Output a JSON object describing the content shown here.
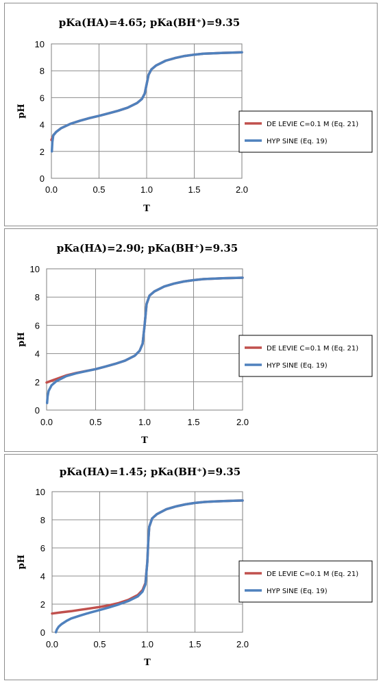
{
  "chart_data": [
    {
      "type": "line",
      "title": "pKa(HA)=4.65; pKa(BH⁺)=9.35",
      "xlabel": "T",
      "ylabel": "pH",
      "xlim": [
        0,
        2.0
      ],
      "ylim": [
        0,
        10
      ],
      "xticks": [
        "0.0",
        "0.5",
        "1.0",
        "1.5",
        "2.0"
      ],
      "yticks": [
        "0",
        "2",
        "4",
        "6",
        "8",
        "10"
      ],
      "grid": true,
      "legend": "right",
      "series": [
        {
          "name": "DE LEVIE C=0.1 M (Eq. 21)",
          "color": "#c0504d",
          "x": [
            0,
            0.02,
            0.05,
            0.1,
            0.2,
            0.3,
            0.4,
            0.5,
            0.6,
            0.7,
            0.8,
            0.9,
            0.95,
            0.98,
            1.0,
            1.02,
            1.05,
            1.1,
            1.2,
            1.3,
            1.4,
            1.5,
            1.6,
            1.7,
            1.8,
            1.9,
            2.0
          ],
          "y": [
            2.85,
            3.2,
            3.45,
            3.72,
            4.05,
            4.28,
            4.48,
            4.65,
            4.83,
            5.02,
            5.25,
            5.6,
            5.9,
            6.3,
            7.0,
            7.7,
            8.1,
            8.4,
            8.75,
            8.95,
            9.1,
            9.2,
            9.27,
            9.3,
            9.33,
            9.35,
            9.37
          ]
        },
        {
          "name": "HYP SINE (Eq. 19)",
          "color": "#4f81bd",
          "x": [
            0.005,
            0.01,
            0.02,
            0.05,
            0.1,
            0.2,
            0.3,
            0.4,
            0.5,
            0.6,
            0.7,
            0.8,
            0.9,
            0.95,
            0.98,
            1.0,
            1.02,
            1.05,
            1.1,
            1.2,
            1.3,
            1.4,
            1.5,
            1.6,
            1.7,
            1.8,
            1.9,
            2.0
          ],
          "y": [
            2.0,
            2.7,
            3.2,
            3.45,
            3.72,
            4.05,
            4.28,
            4.48,
            4.65,
            4.83,
            5.02,
            5.25,
            5.6,
            5.9,
            6.3,
            7.0,
            7.7,
            8.1,
            8.4,
            8.75,
            8.95,
            9.1,
            9.2,
            9.27,
            9.3,
            9.33,
            9.35,
            9.37
          ]
        }
      ]
    },
    {
      "type": "line",
      "title": "pKa(HA)=2.90; pKa(BH⁺)=9.35",
      "xlabel": "T",
      "ylabel": "pH",
      "xlim": [
        0,
        2.0
      ],
      "ylim": [
        0,
        10
      ],
      "xticks": [
        "0.0",
        "0.5",
        "1.0",
        "1.5",
        "2.0"
      ],
      "yticks": [
        "0",
        "2",
        "4",
        "6",
        "8",
        "10"
      ],
      "grid": true,
      "legend": "right",
      "series": [
        {
          "name": "DE LEVIE C=0.1 M (Eq. 21)",
          "color": "#c0504d",
          "x": [
            0,
            0.05,
            0.1,
            0.2,
            0.3,
            0.4,
            0.5,
            0.6,
            0.7,
            0.8,
            0.9,
            0.95,
            0.98,
            1.0,
            1.02,
            1.05,
            1.1,
            1.2,
            1.3,
            1.4,
            1.5,
            1.6,
            1.7,
            1.8,
            1.9,
            2.0
          ],
          "y": [
            1.95,
            2.08,
            2.2,
            2.45,
            2.62,
            2.76,
            2.9,
            3.08,
            3.27,
            3.5,
            3.85,
            4.2,
            4.7,
            6.0,
            7.5,
            8.1,
            8.4,
            8.75,
            8.95,
            9.1,
            9.2,
            9.27,
            9.3,
            9.33,
            9.35,
            9.37
          ]
        },
        {
          "name": "HYP SINE (Eq. 19)",
          "color": "#4f81bd",
          "x": [
            0.005,
            0.01,
            0.02,
            0.05,
            0.1,
            0.2,
            0.3,
            0.4,
            0.5,
            0.6,
            0.7,
            0.8,
            0.9,
            0.95,
            0.98,
            1.0,
            1.02,
            1.05,
            1.1,
            1.2,
            1.3,
            1.4,
            1.5,
            1.6,
            1.7,
            1.8,
            1.9,
            2.0
          ],
          "y": [
            0.5,
            0.95,
            1.35,
            1.75,
            2.05,
            2.4,
            2.6,
            2.75,
            2.9,
            3.08,
            3.27,
            3.5,
            3.85,
            4.2,
            4.7,
            6.0,
            7.5,
            8.1,
            8.4,
            8.75,
            8.95,
            9.1,
            9.2,
            9.27,
            9.3,
            9.33,
            9.35,
            9.37
          ]
        }
      ]
    },
    {
      "type": "line",
      "title": "pKa(HA)=1.45; pKa(BH⁺)=9.35",
      "xlabel": "T",
      "ylabel": "pH",
      "xlim": [
        0,
        2.0
      ],
      "ylim": [
        0,
        10
      ],
      "xticks": [
        "0.0",
        "0.5",
        "1.0",
        "1.5",
        "2.0"
      ],
      "yticks": [
        "0",
        "2",
        "4",
        "6",
        "8",
        "10"
      ],
      "grid": true,
      "legend": "right",
      "series": [
        {
          "name": "DE LEVIE C=0.1 M (Eq. 21)",
          "color": "#c0504d",
          "x": [
            0,
            0.1,
            0.2,
            0.3,
            0.4,
            0.5,
            0.6,
            0.7,
            0.8,
            0.9,
            0.95,
            0.98,
            1.0,
            1.01,
            1.02,
            1.05,
            1.1,
            1.2,
            1.3,
            1.4,
            1.5,
            1.6,
            1.7,
            1.8,
            1.9,
            2.0
          ],
          "y": [
            1.33,
            1.42,
            1.5,
            1.6,
            1.7,
            1.8,
            1.92,
            2.08,
            2.3,
            2.65,
            3.0,
            3.5,
            5.0,
            6.5,
            7.5,
            8.1,
            8.4,
            8.75,
            8.95,
            9.1,
            9.2,
            9.27,
            9.3,
            9.33,
            9.35,
            9.37
          ]
        },
        {
          "name": "HYP SINE (Eq. 19)",
          "color": "#4f81bd",
          "x": [
            0.04,
            0.05,
            0.07,
            0.1,
            0.15,
            0.2,
            0.3,
            0.4,
            0.5,
            0.6,
            0.7,
            0.8,
            0.9,
            0.95,
            0.98,
            1.0,
            1.01,
            1.02,
            1.05,
            1.1,
            1.2,
            1.3,
            1.4,
            1.5,
            1.6,
            1.7,
            1.8,
            1.9,
            2.0
          ],
          "y": [
            0.0,
            0.2,
            0.4,
            0.58,
            0.8,
            0.98,
            1.2,
            1.4,
            1.58,
            1.77,
            1.98,
            2.22,
            2.55,
            2.9,
            3.4,
            5.0,
            6.5,
            7.5,
            8.1,
            8.4,
            8.75,
            8.95,
            9.1,
            9.2,
            9.27,
            9.3,
            9.33,
            9.35,
            9.37
          ]
        }
      ]
    }
  ]
}
